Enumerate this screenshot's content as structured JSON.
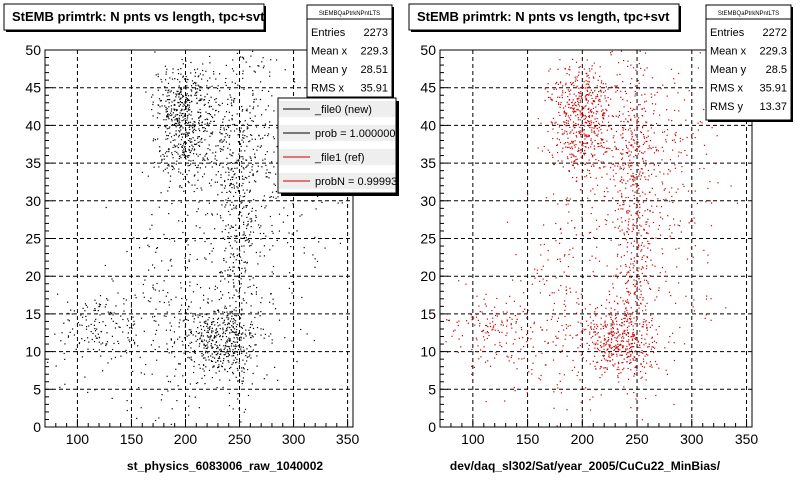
{
  "chart_data": [
    {
      "type": "scatter",
      "title": "StEMB primtrk: N pnts vs length, tpc+svt",
      "xlabel": "st_physics_6083006_raw_1040002",
      "ylabel": "",
      "xlim": [
        70,
        355
      ],
      "ylim": [
        0,
        50
      ],
      "x_ticks": [
        100,
        150,
        200,
        250,
        300,
        350
      ],
      "y_ticks": [
        0,
        5,
        10,
        15,
        20,
        25,
        30,
        35,
        40,
        45,
        50
      ],
      "grid": true,
      "marker_color": "#000000",
      "clusters": [
        {
          "x_center": 198,
          "y_center": 43,
          "x_spread": 14,
          "y_spread": 2.5,
          "count": 330
        },
        {
          "x_center": 197,
          "y_center": 37,
          "x_spread": 13,
          "y_spread": 2.5,
          "count": 180
        },
        {
          "x_center": 232,
          "y_center": 11.5,
          "x_spread": 18,
          "y_spread": 2.5,
          "count": 420
        },
        {
          "x_center": 248,
          "y_center": 27,
          "x_spread": 10,
          "y_spread": 11,
          "count": 320
        },
        {
          "x_center": 240,
          "y_center": 38,
          "x_spread": 28,
          "y_spread": 6,
          "count": 300
        },
        {
          "x_center": 120,
          "y_center": 13,
          "x_spread": 20,
          "y_spread": 3,
          "count": 150
        },
        {
          "x_center": 185,
          "y_center": 15,
          "x_spread": 25,
          "y_spread": 8,
          "count": 200
        },
        {
          "x_center": 270,
          "y_center": 30,
          "x_spread": 30,
          "y_spread": 12,
          "count": 250
        }
      ],
      "stats": {
        "name": "StEMBQaPtrkNPntLTS",
        "rows": [
          {
            "label": "Entries",
            "value": "2273"
          },
          {
            "label": "Mean x",
            "value": "229.3"
          },
          {
            "label": "Mean y",
            "value": "28.51"
          },
          {
            "label": "RMS x",
            "value": "35.91"
          }
        ]
      },
      "legend": {
        "placement": "top-right",
        "entries": [
          {
            "label": "_file0 (new)",
            "color": "#000000"
          },
          {
            "label": "prob = 1.000000",
            "color": "#000000"
          },
          {
            "label": "_file1 (ref)",
            "color": "#cc0000"
          },
          {
            "label": "probN = 0.99993",
            "color": "#cc0000"
          }
        ]
      }
    },
    {
      "type": "scatter",
      "title": "StEMB primtrk: N pnts vs length, tpc+svt",
      "xlabel": "dev/daq_sl302/Sat/year_2005/CuCu22_MinBias/",
      "ylabel": "",
      "xlim": [
        70,
        355
      ],
      "ylim": [
        0,
        50
      ],
      "x_ticks": [
        100,
        150,
        200,
        250,
        300,
        350
      ],
      "y_ticks": [
        0,
        5,
        10,
        15,
        20,
        25,
        30,
        35,
        40,
        45,
        50
      ],
      "grid": true,
      "marker_color": "#cc0000",
      "clusters": [
        {
          "x_center": 198,
          "y_center": 43,
          "x_spread": 14,
          "y_spread": 2.5,
          "count": 320
        },
        {
          "x_center": 197,
          "y_center": 37,
          "x_spread": 13,
          "y_spread": 2.5,
          "count": 180
        },
        {
          "x_center": 232,
          "y_center": 11.5,
          "x_spread": 18,
          "y_spread": 2.5,
          "count": 420
        },
        {
          "x_center": 248,
          "y_center": 27,
          "x_spread": 10,
          "y_spread": 11,
          "count": 320
        },
        {
          "x_center": 240,
          "y_center": 38,
          "x_spread": 28,
          "y_spread": 6,
          "count": 300
        },
        {
          "x_center": 120,
          "y_center": 13,
          "x_spread": 20,
          "y_spread": 3,
          "count": 150
        },
        {
          "x_center": 185,
          "y_center": 15,
          "x_spread": 25,
          "y_spread": 8,
          "count": 200
        },
        {
          "x_center": 270,
          "y_center": 30,
          "x_spread": 30,
          "y_spread": 12,
          "count": 250
        }
      ],
      "stats": {
        "name": "StEMBQaPtrkNPntLTS",
        "rows": [
          {
            "label": "Entries",
            "value": "2272"
          },
          {
            "label": "Mean x",
            "value": "229.3"
          },
          {
            "label": "Mean y",
            "value": "28.5"
          },
          {
            "label": "RMS x",
            "value": "35.91"
          },
          {
            "label": "RMS y",
            "value": "13.37"
          }
        ]
      }
    }
  ]
}
